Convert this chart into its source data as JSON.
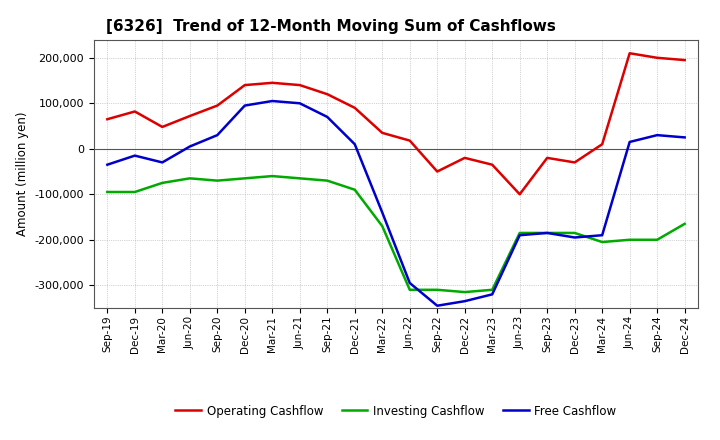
{
  "title": "[6326]  Trend of 12-Month Moving Sum of Cashflows",
  "ylabel": "Amount (million yen)",
  "background_color": "#ffffff",
  "plot_background_color": "#ffffff",
  "grid_color": "#aaaaaa",
  "title_fontsize": 11,
  "tick_labels": [
    "Sep-19",
    "Dec-19",
    "Mar-20",
    "Jun-20",
    "Sep-20",
    "Dec-20",
    "Mar-21",
    "Jun-21",
    "Sep-21",
    "Dec-21",
    "Mar-22",
    "Jun-22",
    "Sep-22",
    "Dec-22",
    "Mar-23",
    "Jun-23",
    "Sep-23",
    "Dec-23",
    "Mar-24",
    "Jun-24",
    "Sep-24",
    "Dec-24"
  ],
  "operating_cashflow": [
    65000,
    82000,
    48000,
    72000,
    95000,
    140000,
    145000,
    140000,
    120000,
    90000,
    35000,
    18000,
    -50000,
    -20000,
    -35000,
    -100000,
    -20000,
    -30000,
    10000,
    210000,
    200000,
    195000
  ],
  "investing_cashflow": [
    -95000,
    -95000,
    -75000,
    -65000,
    -70000,
    -65000,
    -60000,
    -65000,
    -70000,
    -90000,
    -170000,
    -310000,
    -310000,
    -315000,
    -310000,
    -185000,
    -185000,
    -185000,
    -205000,
    -200000,
    -200000,
    -165000
  ],
  "free_cashflow": [
    -35000,
    -15000,
    -30000,
    5000,
    30000,
    95000,
    105000,
    100000,
    70000,
    10000,
    -140000,
    -295000,
    -345000,
    -335000,
    -320000,
    -190000,
    -185000,
    -195000,
    -190000,
    15000,
    30000,
    25000
  ],
  "operating_color": "#dd0000",
  "investing_color": "#00aa00",
  "free_color": "#0000cc",
  "ylim": [
    -350000,
    240000
  ],
  "yticks": [
    -300000,
    -200000,
    -100000,
    0,
    100000,
    200000
  ],
  "legend_labels": [
    "Operating Cashflow",
    "Investing Cashflow",
    "Free Cashflow"
  ],
  "linewidth": 1.8
}
